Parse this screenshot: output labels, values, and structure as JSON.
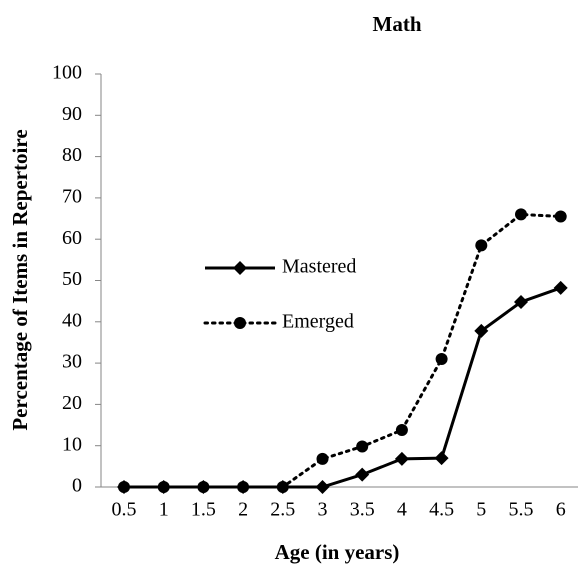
{
  "chart_data": {
    "type": "line",
    "title": "Math",
    "x_label": "Age (in years)",
    "y_label": "Percentage of Items in Repertoire",
    "categories": [
      "0.5",
      "1",
      "1.5",
      "2",
      "2.5",
      "3",
      "3.5",
      "4",
      "4.5",
      "5",
      "5.5",
      "6"
    ],
    "series": [
      {
        "name": "Mastered",
        "color": "#000000",
        "line_style": "solid",
        "marker": "diamond",
        "values": [
          0,
          0,
          0,
          0,
          0,
          0,
          3,
          6.8,
          7,
          37.8,
          44.8,
          48.2
        ]
      },
      {
        "name": "Emerged",
        "color": "#000000",
        "line_style": "dotted",
        "marker": "circle",
        "values": [
          0,
          0,
          0,
          0,
          0,
          6.8,
          9.8,
          13.8,
          31,
          58.5,
          66,
          65.5
        ]
      }
    ],
    "ylim": [
      0,
      100
    ],
    "yticks": [
      0,
      10,
      20,
      30,
      40,
      50,
      60,
      70,
      80,
      90,
      100
    ],
    "grid": false,
    "legend": "left"
  }
}
